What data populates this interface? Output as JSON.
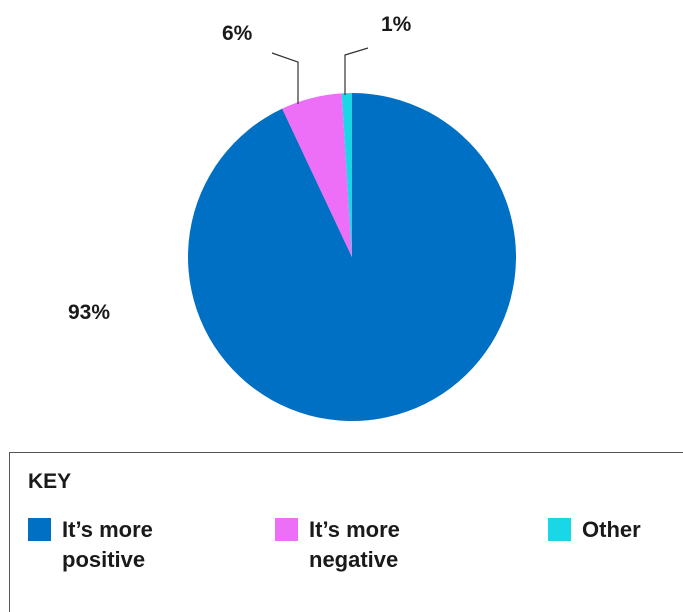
{
  "chart_data": {
    "type": "pie",
    "categories": [
      "It’s more positive",
      "It’s more negative",
      "Other"
    ],
    "values": [
      93,
      6,
      1
    ],
    "data_labels": [
      "93%",
      "6%",
      "1%"
    ],
    "colors": [
      "#0070c5",
      "#ed6ef7",
      "#1ad7e8"
    ],
    "legend": {
      "title": "KEY",
      "placement": "bottom",
      "items": [
        {
          "label": "It’s more positive",
          "color": "#0070c5"
        },
        {
          "label": "It’s more negative",
          "color": "#ed6ef7"
        },
        {
          "label": "Other",
          "color": "#1ad7e8"
        }
      ]
    }
  }
}
